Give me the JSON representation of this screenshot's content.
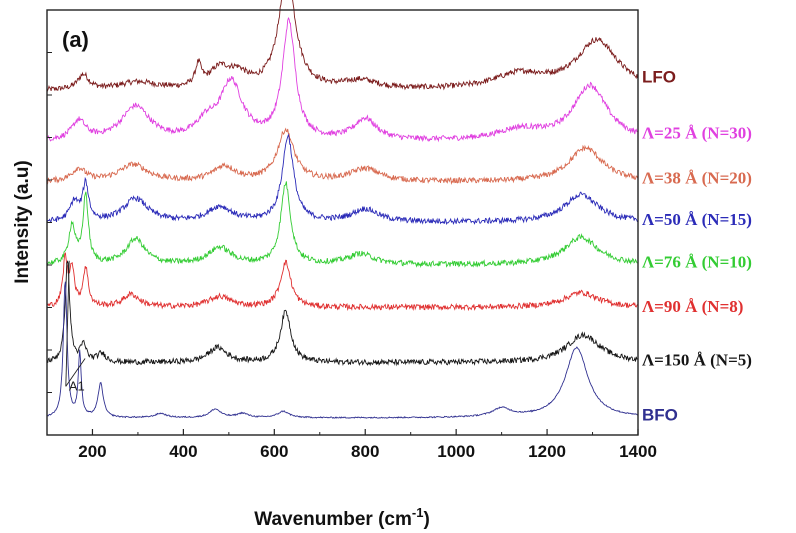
{
  "chart_data": {
    "type": "line",
    "title": "",
    "panel_label": "(a)",
    "xlabel": "Wavenumber (cm",
    "xlabel_sup": "-1",
    "xlabel_close": ")",
    "ylabel": "Intensity (a.u)",
    "xlim": [
      100,
      1400
    ],
    "ylim": [
      0,
      10
    ],
    "y_ticks_shown": false,
    "x_ticks": [
      "200",
      "400",
      "600",
      "800",
      "1000",
      "1200",
      "1400"
    ],
    "grid": false,
    "legend": "labels at right end of each trace",
    "annotation": {
      "text": "A1",
      "targets_x": [
        140,
        175
      ]
    },
    "series": [
      {
        "name": "LFO",
        "color": "#7b1c1c",
        "font": "sans",
        "offset": 8.1,
        "peaks": [
          [
            180,
            0.35,
            15
          ],
          [
            300,
            0.18,
            50
          ],
          [
            433,
            0.5,
            8
          ],
          [
            480,
            0.45,
            28
          ],
          [
            520,
            0.3,
            25
          ],
          [
            628,
            2.7,
            22
          ],
          [
            790,
            0.2,
            45
          ],
          [
            1140,
            0.35,
            70
          ],
          [
            1310,
            1.15,
            55
          ]
        ]
      },
      {
        "name": "Λ=25 Å (N=30)",
        "color": "#e040e0",
        "font": "serif",
        "offset": 6.9,
        "peaks": [
          [
            170,
            0.45,
            18
          ],
          [
            295,
            0.8,
            38
          ],
          [
            450,
            0.35,
            25
          ],
          [
            505,
            1.35,
            30
          ],
          [
            632,
            2.75,
            17
          ],
          [
            800,
            0.5,
            30
          ],
          [
            1140,
            0.25,
            60
          ],
          [
            1295,
            1.3,
            45
          ]
        ]
      },
      {
        "name": "Λ=38 Å (N=20)",
        "color": "#d86a50",
        "font": "serif",
        "offset": 5.95,
        "peaks": [
          [
            170,
            0.3,
            18
          ],
          [
            290,
            0.4,
            38
          ],
          [
            490,
            0.35,
            30
          ],
          [
            625,
            1.2,
            22
          ],
          [
            800,
            0.3,
            40
          ],
          [
            1285,
            0.8,
            45
          ]
        ]
      },
      {
        "name": "Λ=50 Å (N=15)",
        "color": "#2b2bb8",
        "font": "serif",
        "offset": 5.0,
        "peaks": [
          [
            160,
            0.45,
            12
          ],
          [
            185,
            0.85,
            8
          ],
          [
            295,
            0.55,
            32
          ],
          [
            480,
            0.35,
            32
          ],
          [
            630,
            2.0,
            15
          ],
          [
            800,
            0.3,
            35
          ],
          [
            1275,
            0.65,
            45
          ]
        ]
      },
      {
        "name": "Λ=76 Å (N=10)",
        "color": "#33cc33",
        "font": "serif",
        "offset": 4.0,
        "peaks": [
          [
            155,
            0.9,
            9
          ],
          [
            185,
            1.6,
            7
          ],
          [
            295,
            0.6,
            25
          ],
          [
            480,
            0.4,
            30
          ],
          [
            625,
            1.9,
            13
          ],
          [
            790,
            0.25,
            35
          ],
          [
            1275,
            0.65,
            45
          ]
        ]
      },
      {
        "name": "Λ=90 Å (N=8)",
        "color": "#e03030",
        "font": "serif",
        "offset": 3.0,
        "peaks": [
          [
            140,
            1.1,
            6
          ],
          [
            155,
            0.9,
            6
          ],
          [
            185,
            0.9,
            7
          ],
          [
            285,
            0.3,
            22
          ],
          [
            480,
            0.25,
            30
          ],
          [
            625,
            1.05,
            14
          ],
          [
            1275,
            0.35,
            45
          ]
        ]
      },
      {
        "name": "Λ=150 Å (N=5)",
        "color": "#151515",
        "font": "serif",
        "offset": 1.7,
        "peaks": [
          [
            145,
            2.4,
            6
          ],
          [
            180,
            0.4,
            8
          ],
          [
            220,
            0.2,
            12
          ],
          [
            475,
            0.35,
            25
          ],
          [
            625,
            1.2,
            14
          ],
          [
            1280,
            0.65,
            45
          ]
        ]
      },
      {
        "name": "BFO",
        "color": "#303090",
        "font": "sans",
        "offset": 0.4,
        "peaks": [
          [
            140,
            3.2,
            5
          ],
          [
            172,
            1.5,
            4
          ],
          [
            218,
            0.8,
            7
          ],
          [
            350,
            0.1,
            15
          ],
          [
            470,
            0.2,
            15
          ],
          [
            530,
            0.1,
            15
          ],
          [
            620,
            0.15,
            15
          ],
          [
            1100,
            0.2,
            25
          ],
          [
            1265,
            1.65,
            30
          ]
        ]
      }
    ]
  }
}
